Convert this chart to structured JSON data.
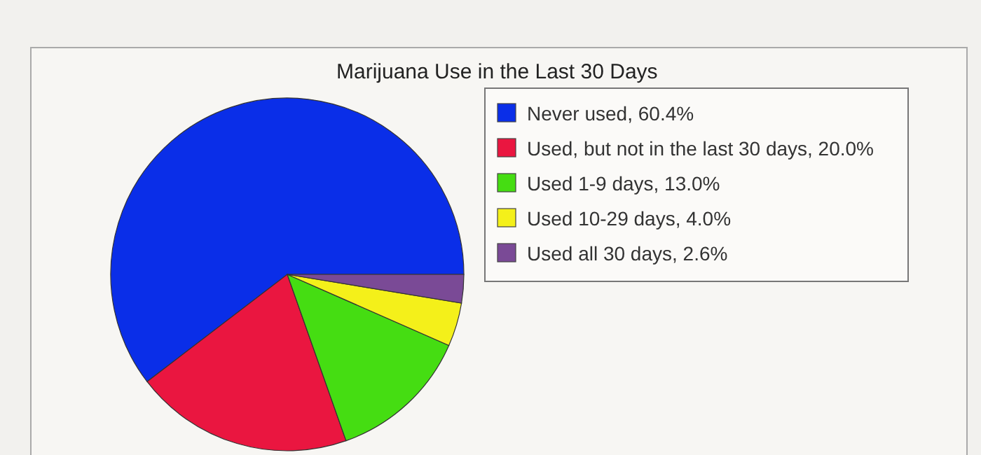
{
  "chart_data": {
    "type": "pie",
    "title": "Marijuana Use in the Last 30 Days",
    "categories": [
      "Never used, 60.4%",
      "Used, but not in the last 30 days, 20.0%",
      "Used 1-9 days, 13.0%",
      "Used 10-29 days, 4.0%",
      "Used all 30 days, 2.6%"
    ],
    "values": [
      60.4,
      20.0,
      13.0,
      4.0,
      2.6
    ],
    "colors": [
      "#0a2ee8",
      "#ea1640",
      "#45dd12",
      "#f4f01a",
      "#7a4a96"
    ],
    "legend": "right"
  }
}
